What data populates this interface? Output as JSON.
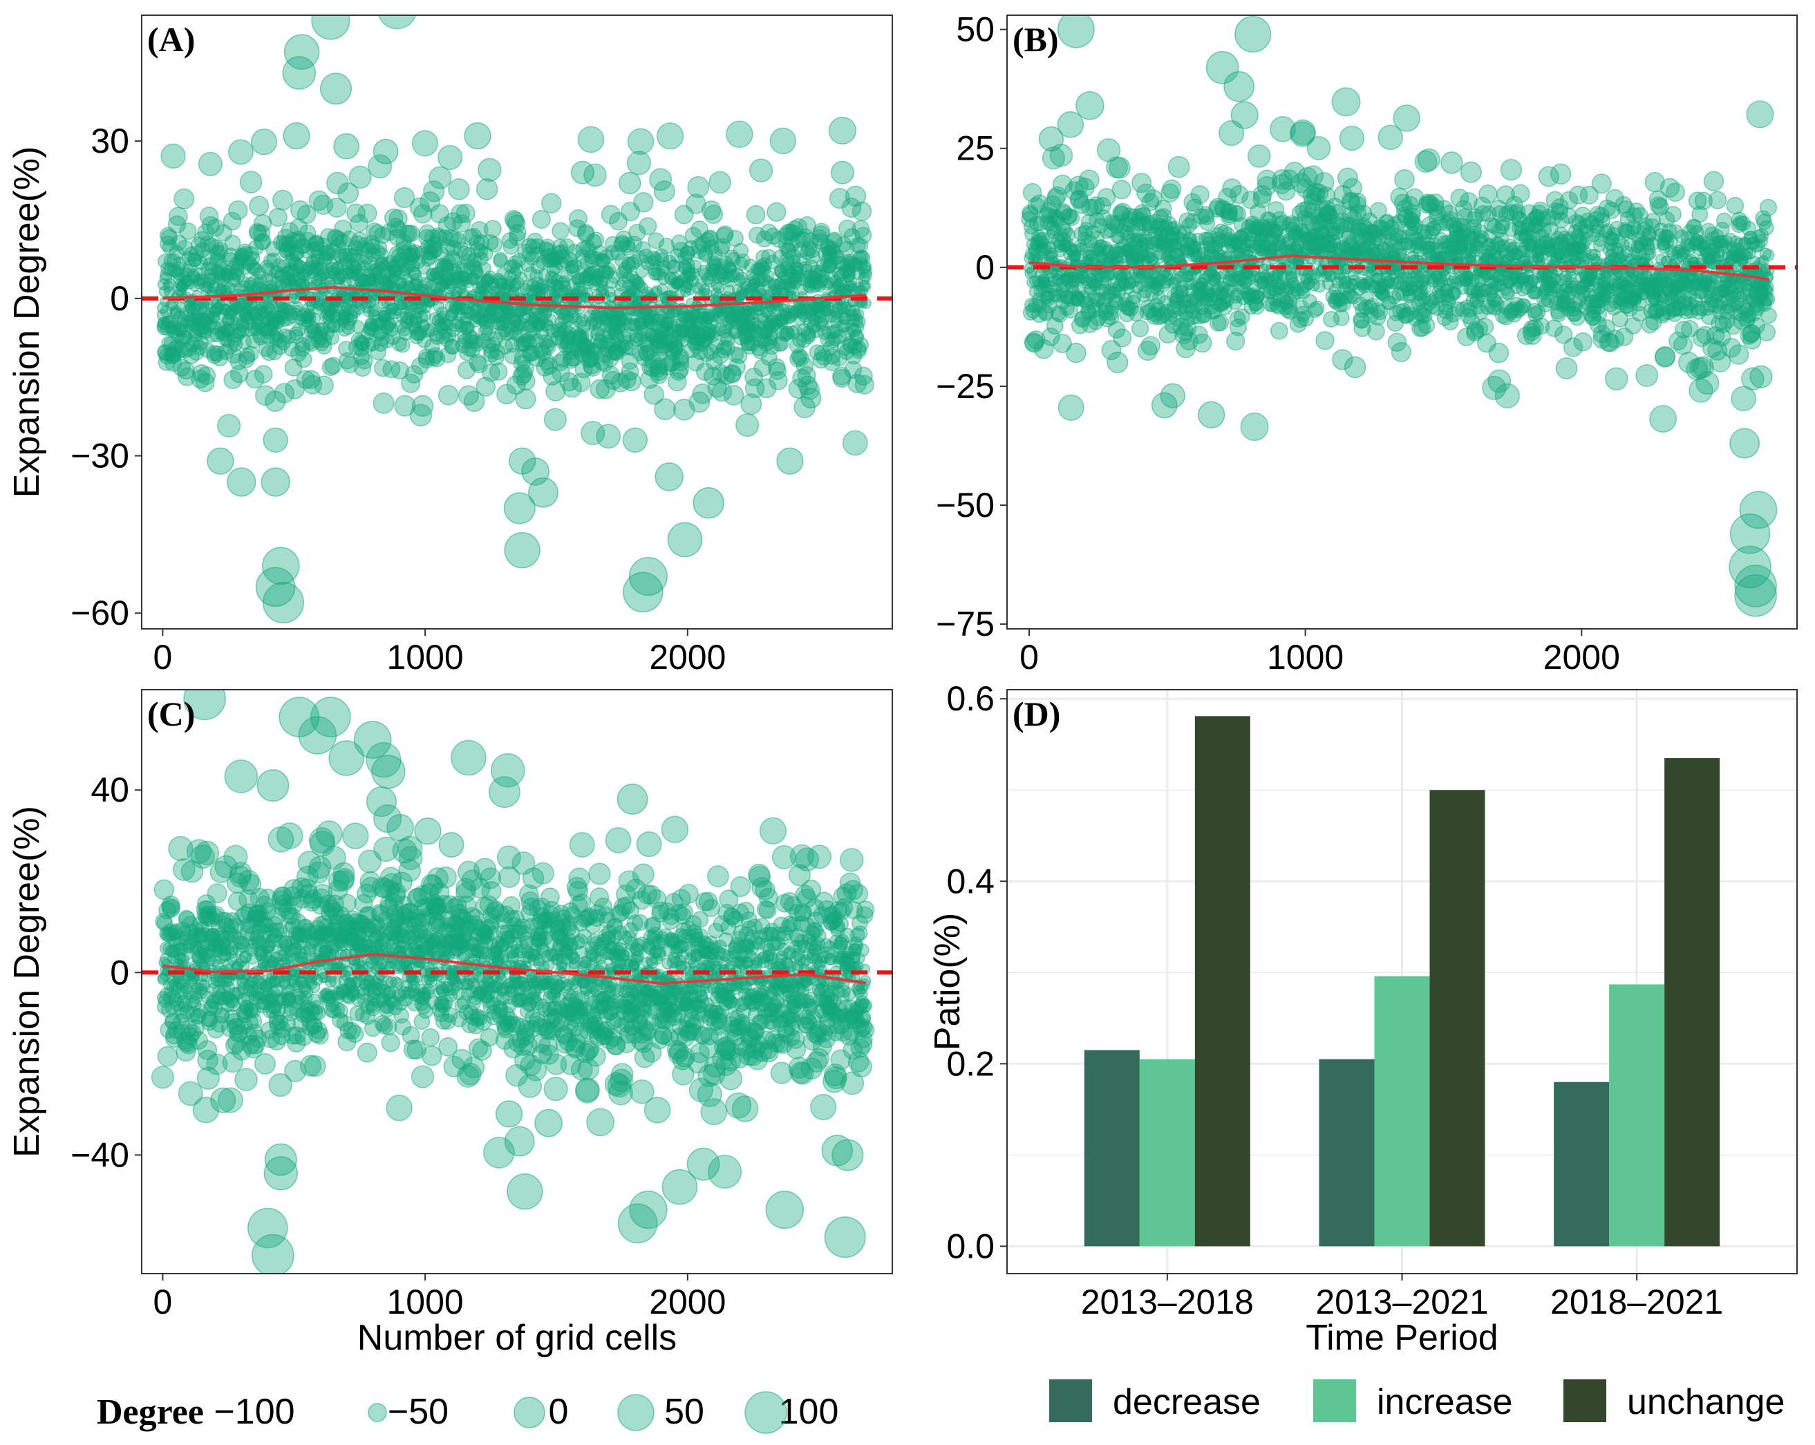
{
  "colors": {
    "point": "#13a97c",
    "trend": "#e03b3b",
    "zero_line": "#e8161a",
    "decrease": "#356b5b",
    "increase": "#5ec594",
    "unchange": "#33472d",
    "grid": "#ebebeb"
  },
  "size_legend": {
    "title": "Degree",
    "items": [
      {
        "label": "-100",
        "value": -100
      },
      {
        "label": "-50",
        "value": -50
      },
      {
        "label": "0",
        "value": 0
      },
      {
        "label": "50",
        "value": 50
      },
      {
        "label": "100",
        "value": 100
      }
    ]
  },
  "fill_legend": {
    "items": [
      {
        "label": "decrease",
        "key": "decrease"
      },
      {
        "label": "increase",
        "key": "increase"
      },
      {
        "label": "unchange",
        "key": "unchange"
      }
    ]
  },
  "chart_data": [
    {
      "id": "A",
      "panel_label": "(A)",
      "type": "scatter",
      "ylabel": "Expansion Degree(%)",
      "xlabel": "",
      "xlim": [
        -80,
        2780
      ],
      "ylim": [
        -63,
        54
      ],
      "xticks": [
        {
          "v": 0,
          "label": "0"
        },
        {
          "v": 1000,
          "label": "1000"
        },
        {
          "v": 2000,
          "label": "2000"
        }
      ],
      "yticks": [
        {
          "v": -60,
          "label": "-60"
        },
        {
          "v": -30,
          "label": "-30"
        },
        {
          "v": 0,
          "label": "0"
        },
        {
          "v": 30,
          "label": "30"
        }
      ],
      "points_n": 2700,
      "spread": 6.5,
      "highlights": [
        [
          640,
          53
        ],
        [
          530,
          47
        ],
        [
          520,
          43
        ],
        [
          660,
          40
        ],
        [
          1200,
          31
        ],
        [
          2590,
          32
        ],
        [
          2590,
          24
        ],
        [
          510,
          31
        ],
        [
          700,
          29
        ],
        [
          850,
          28
        ],
        [
          1780,
          22
        ],
        [
          1600,
          24
        ],
        [
          1920,
          10
        ],
        [
          430,
          -55
        ],
        [
          450,
          -51
        ],
        [
          460,
          -58
        ],
        [
          1850,
          -53
        ],
        [
          1830,
          -56
        ],
        [
          1370,
          -48
        ],
        [
          1990,
          -46
        ],
        [
          2390,
          -31
        ],
        [
          220,
          -31
        ],
        [
          300,
          -35
        ],
        [
          430,
          -35
        ],
        [
          430,
          -27
        ],
        [
          1420,
          -33
        ],
        [
          1370,
          -31
        ],
        [
          1360,
          -40
        ],
        [
          1930,
          -34
        ],
        [
          2080,
          -39
        ],
        [
          1450,
          -37
        ],
        [
          1800,
          -27
        ],
        [
          2470,
          -19
        ],
        [
          2620,
          -9
        ]
      ],
      "smooth": [
        [
          0,
          0
        ],
        [
          300,
          0.6
        ],
        [
          500,
          1.6
        ],
        [
          650,
          2.1
        ],
        [
          850,
          1.4
        ],
        [
          1100,
          0
        ],
        [
          1400,
          -1.2
        ],
        [
          1700,
          -1.8
        ],
        [
          2000,
          -1.5
        ],
        [
          2300,
          -0.7
        ],
        [
          2550,
          0.2
        ],
        [
          2680,
          0.6
        ]
      ]
    },
    {
      "id": "B",
      "panel_label": "(B)",
      "type": "scatter",
      "ylabel": "",
      "xlabel": "",
      "xlim": [
        -80,
        2780
      ],
      "ylim": [
        -76,
        53
      ],
      "xticks": [
        {
          "v": 0,
          "label": "0"
        },
        {
          "v": 1000,
          "label": "1000"
        },
        {
          "v": 2000,
          "label": "2000"
        }
      ],
      "yticks": [
        {
          "v": -75,
          "label": "-75"
        },
        {
          "v": -50,
          "label": "-50"
        },
        {
          "v": -25,
          "label": "-25"
        },
        {
          "v": 0,
          "label": "0"
        },
        {
          "v": 25,
          "label": "25"
        },
        {
          "v": 50,
          "label": "50"
        }
      ],
      "points_n": 2700,
      "spread": 6.5,
      "highlights": [
        [
          170,
          50
        ],
        [
          810,
          49
        ],
        [
          700,
          42
        ],
        [
          760,
          38
        ],
        [
          220,
          34
        ],
        [
          780,
          32
        ],
        [
          990,
          28
        ],
        [
          80,
          27
        ],
        [
          150,
          30
        ],
        [
          1530,
          22
        ],
        [
          1600,
          20
        ],
        [
          2420,
          14
        ],
        [
          2590,
          -37
        ],
        [
          2640,
          -51
        ],
        [
          2610,
          -56
        ],
        [
          2610,
          -63
        ],
        [
          2630,
          -67
        ],
        [
          2630,
          -69
        ],
        [
          2650,
          -23
        ],
        [
          660,
          -31
        ],
        [
          490,
          -29
        ],
        [
          520,
          -27
        ],
        [
          1180,
          -21
        ],
        [
          1700,
          -18
        ],
        [
          2440,
          -21
        ],
        [
          120,
          -16
        ],
        [
          170,
          -18
        ],
        [
          320,
          -20
        ]
      ],
      "smooth": [
        [
          0,
          1
        ],
        [
          200,
          0
        ],
        [
          450,
          0
        ],
        [
          700,
          1
        ],
        [
          950,
          2.4
        ],
        [
          1200,
          1.6
        ],
        [
          1500,
          0.7
        ],
        [
          1800,
          0.1
        ],
        [
          2100,
          0
        ],
        [
          2400,
          -0.6
        ],
        [
          2600,
          -1.8
        ],
        [
          2680,
          -2.6
        ]
      ]
    },
    {
      "id": "C",
      "panel_label": "(C)",
      "type": "scatter",
      "ylabel": "Expansion Degree(%)",
      "xlabel": "Number of grid cells",
      "xlim": [
        -80,
        2780
      ],
      "ylim": [
        -66,
        62
      ],
      "xticks": [
        {
          "v": 0,
          "label": "0"
        },
        {
          "v": 1000,
          "label": "1000"
        },
        {
          "v": 2000,
          "label": "2000"
        }
      ],
      "yticks": [
        {
          "v": -40,
          "label": "-40"
        },
        {
          "v": 0,
          "label": "0"
        },
        {
          "v": 40,
          "label": "40"
        }
      ],
      "points_n": 2700,
      "spread": 8.5,
      "highlights": [
        [
          160,
          60
        ],
        [
          520,
          56
        ],
        [
          640,
          56
        ],
        [
          800,
          51
        ],
        [
          700,
          47
        ],
        [
          590,
          52
        ],
        [
          860,
          44
        ],
        [
          420,
          41
        ],
        [
          1790,
          38
        ],
        [
          1010,
          31
        ],
        [
          1100,
          28
        ],
        [
          420,
          -62
        ],
        [
          400,
          -56
        ],
        [
          450,
          -44
        ],
        [
          450,
          -41
        ],
        [
          2370,
          -52
        ],
        [
          1380,
          -48
        ],
        [
          1810,
          -55
        ],
        [
          1970,
          -47
        ],
        [
          2060,
          -42
        ],
        [
          2600,
          -58
        ],
        [
          2570,
          -39
        ],
        [
          2610,
          -40
        ],
        [
          1850,
          -52
        ],
        [
          230,
          -28
        ],
        [
          170,
          -17
        ],
        [
          1320,
          -31
        ],
        [
          1360,
          -37
        ],
        [
          1470,
          -33
        ]
      ],
      "smooth": [
        [
          0,
          1.5
        ],
        [
          200,
          0.1
        ],
        [
          400,
          0.3
        ],
        [
          600,
          2.5
        ],
        [
          800,
          4
        ],
        [
          1000,
          3
        ],
        [
          1300,
          1
        ],
        [
          1600,
          -0.5
        ],
        [
          1900,
          -2.4
        ],
        [
          2200,
          -1.3
        ],
        [
          2450,
          -0.4
        ],
        [
          2680,
          -2.3
        ]
      ]
    },
    {
      "id": "D",
      "panel_label": "(D)",
      "type": "bar",
      "ylabel": "Patio(%)",
      "xlabel": "Time Period",
      "categories": [
        "2013-2018",
        "2013-2021",
        "2018-2021"
      ],
      "ylim": [
        -0.03,
        0.61
      ],
      "yticks": [
        {
          "v": 0,
          "label": "0.0"
        },
        {
          "v": 0.2,
          "label": "0.2"
        },
        {
          "v": 0.4,
          "label": "0.4"
        },
        {
          "v": 0.6,
          "label": "0.6"
        }
      ],
      "series": [
        {
          "name": "decrease",
          "values": [
            0.215,
            0.205,
            0.18
          ]
        },
        {
          "name": "increase",
          "values": [
            0.205,
            0.296,
            0.287
          ]
        },
        {
          "name": "unchange",
          "values": [
            0.581,
            0.5,
            0.535
          ]
        }
      ]
    }
  ]
}
